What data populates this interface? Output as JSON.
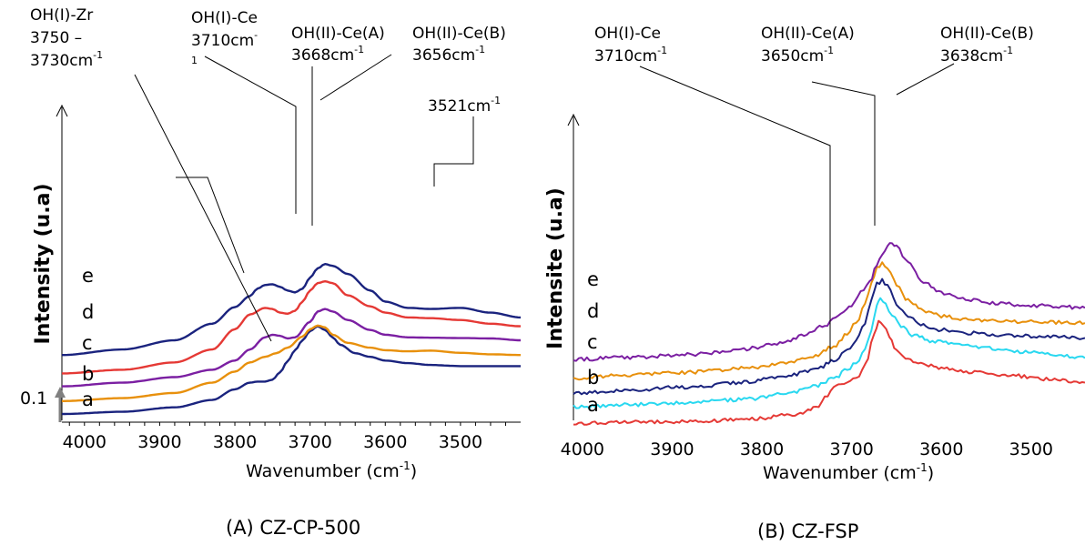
{
  "chart_data": [
    {
      "type": "line",
      "caption": "(A) CZ-CP-500",
      "xlabel": "Wavenumber",
      "xlabel_unit_base": "cm",
      "xlabel_unit_exp": "-1",
      "ylabel": "Intensity (u.a)",
      "scale_label": "0.1",
      "xlim": [
        4030,
        3420
      ],
      "x_reversed": true,
      "ticks": [
        "4000",
        "3900",
        "3800",
        "3700",
        "3600",
        "3500"
      ],
      "tick_values": [
        4000,
        3900,
        3800,
        3700,
        3600,
        3500
      ],
      "annotations": [
        {
          "lines": [
            "OH(I)-Zr",
            "3750 –",
            "3730cm"
          ],
          "sup": "-1"
        },
        {
          "lines": [
            "OH(I)-Ce",
            "3710cm"
          ],
          "sup": "-",
          "extra": "1"
        },
        {
          "lines": [
            "OH(II)-Ce(A)",
            "3668cm"
          ],
          "sup": "-1"
        },
        {
          "lines": [
            "OH(II)-Ce(B)",
            "3656cm"
          ],
          "sup": "-1"
        },
        {
          "lines": [
            "3521cm"
          ],
          "sup": "-1"
        }
      ],
      "series": [
        {
          "name": "a",
          "color": "#1a237e",
          "x": [
            4030,
            3950,
            3880,
            3830,
            3800,
            3780,
            3770,
            3760,
            3750,
            3740,
            3730,
            3720,
            3710,
            3700,
            3690,
            3680,
            3670,
            3660,
            3640,
            3620,
            3600,
            3570,
            3540,
            3500,
            3460,
            3420
          ],
          "y": [
            0.0,
            0.06,
            0.18,
            0.38,
            0.67,
            0.85,
            0.88,
            0.88,
            0.93,
            1.13,
            1.43,
            1.73,
            2.0,
            2.25,
            2.38,
            2.28,
            2.08,
            1.88,
            1.65,
            1.55,
            1.45,
            1.38,
            1.33,
            1.3,
            1.3,
            1.3
          ]
        },
        {
          "name": "b",
          "color": "#e8900c",
          "x": [
            4030,
            3950,
            3880,
            3830,
            3800,
            3780,
            3760,
            3745,
            3730,
            3710,
            3700,
            3690,
            3680,
            3670,
            3650,
            3620,
            3600,
            3570,
            3540,
            3500,
            3460,
            3420
          ],
          "y": [
            0.35,
            0.43,
            0.57,
            0.85,
            1.15,
            1.4,
            1.55,
            1.65,
            1.8,
            2.1,
            2.3,
            2.4,
            2.35,
            2.15,
            1.93,
            1.8,
            1.73,
            1.7,
            1.72,
            1.66,
            1.62,
            1.6
          ]
        },
        {
          "name": "c",
          "color": "#7b1fa2",
          "x": [
            4030,
            3950,
            3880,
            3830,
            3800,
            3780,
            3760,
            3750,
            3740,
            3730,
            3720,
            3700,
            3690,
            3680,
            3670,
            3650,
            3620,
            3600,
            3570,
            3540,
            3500,
            3460,
            3420
          ],
          "y": [
            0.75,
            0.85,
            1.0,
            1.2,
            1.45,
            1.75,
            2.08,
            2.15,
            2.12,
            2.05,
            2.08,
            2.5,
            2.78,
            2.85,
            2.78,
            2.55,
            2.28,
            2.15,
            2.08,
            2.07,
            2.06,
            2.05,
            2.0
          ]
        },
        {
          "name": "d",
          "color": "#e53935",
          "x": [
            4030,
            3950,
            3880,
            3830,
            3800,
            3780,
            3760,
            3750,
            3740,
            3730,
            3720,
            3710,
            3700,
            3690,
            3680,
            3670,
            3650,
            3620,
            3600,
            3570,
            3540,
            3500,
            3460,
            3420
          ],
          "y": [
            1.1,
            1.2,
            1.4,
            1.75,
            2.3,
            2.7,
            2.88,
            2.85,
            2.75,
            2.72,
            2.8,
            3.05,
            3.35,
            3.55,
            3.6,
            3.55,
            3.22,
            2.92,
            2.75,
            2.62,
            2.6,
            2.55,
            2.45,
            2.38
          ]
        },
        {
          "name": "e",
          "color": "#1a237e",
          "x": [
            4030,
            3950,
            3880,
            3830,
            3800,
            3780,
            3770,
            3760,
            3750,
            3740,
            3730,
            3720,
            3710,
            3700,
            3690,
            3680,
            3670,
            3650,
            3620,
            3600,
            3570,
            3540,
            3500,
            3460,
            3420
          ],
          "y": [
            1.6,
            1.75,
            2.0,
            2.45,
            2.9,
            3.2,
            3.4,
            3.5,
            3.52,
            3.45,
            3.35,
            3.3,
            3.4,
            3.7,
            3.95,
            4.07,
            4.02,
            3.8,
            3.35,
            3.05,
            2.88,
            2.85,
            2.88,
            2.75,
            2.62
          ]
        }
      ]
    },
    {
      "type": "line",
      "caption": "(B) CZ-FSP",
      "xlabel": "Wavenumber",
      "xlabel_unit_base": "cm",
      "xlabel_unit_exp": "-1",
      "ylabel": "Intensite (u.a)",
      "xlim": [
        4010,
        3440
      ],
      "x_reversed": true,
      "ticks": [
        "4000",
        "3900",
        "3800",
        "3700",
        "3600",
        "3500"
      ],
      "tick_values": [
        4000,
        3900,
        3800,
        3700,
        3600,
        3500
      ],
      "annotations": [
        {
          "lines": [
            "OH(I)-Ce",
            "3710cm"
          ],
          "sup": "-1"
        },
        {
          "lines": [
            "OH(II)-Ce(A)",
            "3650cm"
          ],
          "sup": "-1"
        },
        {
          "lines": [
            "OH(II)-Ce(B)",
            "3638cm"
          ],
          "sup": "-1"
        }
      ],
      "series": [
        {
          "name": "a",
          "color": "#e53935",
          "x": [
            4010,
            3950,
            3880,
            3820,
            3760,
            3740,
            3730,
            3720,
            3712,
            3705,
            3695,
            3685,
            3675,
            3670,
            3665,
            3658,
            3650,
            3640,
            3620,
            3600,
            3560,
            3520,
            3480,
            3440
          ],
          "y": [
            0.0,
            0.03,
            0.05,
            0.12,
            0.3,
            0.5,
            0.85,
            1.22,
            1.32,
            1.38,
            1.5,
            1.95,
            3.0,
            3.42,
            3.35,
            2.9,
            2.45,
            2.2,
            1.98,
            1.85,
            1.72,
            1.6,
            1.48,
            1.37
          ]
        },
        {
          "name": "b",
          "color": "#29d8f0",
          "x": [
            4010,
            3950,
            3880,
            3820,
            3770,
            3740,
            3720,
            3705,
            3695,
            3685,
            3678,
            3672,
            3668,
            3662,
            3655,
            3645,
            3630,
            3610,
            3580,
            3540,
            3500,
            3460,
            3440
          ],
          "y": [
            0.55,
            0.62,
            0.7,
            0.8,
            1.0,
            1.25,
            1.5,
            1.8,
            2.05,
            2.45,
            3.1,
            4.0,
            4.22,
            4.0,
            3.65,
            3.25,
            2.95,
            2.78,
            2.62,
            2.52,
            2.38,
            2.26,
            2.2
          ]
        },
        {
          "name": "c",
          "color": "#1a237e",
          "x": [
            4010,
            3950,
            3880,
            3820,
            3770,
            3740,
            3720,
            3705,
            3695,
            3685,
            3678,
            3672,
            3666,
            3660,
            3650,
            3640,
            3620,
            3600,
            3570,
            3540,
            3500,
            3460,
            3440
          ],
          "y": [
            1.0,
            1.12,
            1.22,
            1.38,
            1.6,
            1.82,
            2.1,
            2.45,
            2.8,
            3.35,
            4.2,
            4.7,
            4.82,
            4.62,
            4.05,
            3.65,
            3.3,
            3.15,
            3.05,
            2.98,
            2.95,
            2.9,
            2.88
          ]
        },
        {
          "name": "d",
          "color": "#e8900c",
          "x": [
            4010,
            3950,
            3880,
            3820,
            3770,
            3740,
            3720,
            3705,
            3695,
            3685,
            3678,
            3672,
            3666,
            3660,
            3650,
            3640,
            3620,
            3600,
            3570,
            3540,
            3500,
            3460,
            3440
          ],
          "y": [
            1.52,
            1.62,
            1.72,
            1.85,
            2.05,
            2.28,
            2.6,
            3.0,
            3.4,
            4.0,
            4.75,
            5.25,
            5.4,
            5.25,
            4.7,
            4.2,
            3.8,
            3.62,
            3.5,
            3.45,
            3.42,
            3.4,
            3.38
          ]
        },
        {
          "name": "e",
          "color": "#7b1fa2",
          "x": [
            4010,
            3950,
            3880,
            3820,
            3780,
            3750,
            3730,
            3715,
            3700,
            3690,
            3680,
            3672,
            3666,
            3660,
            3655,
            3650,
            3640,
            3620,
            3600,
            3570,
            3540,
            3500,
            3460,
            3440
          ],
          "y": [
            2.15,
            2.22,
            2.32,
            2.5,
            2.7,
            3.0,
            3.3,
            3.65,
            4.0,
            4.4,
            4.8,
            5.3,
            5.7,
            6.0,
            6.08,
            6.0,
            5.5,
            4.8,
            4.4,
            4.18,
            4.05,
            3.98,
            3.92,
            3.9
          ]
        }
      ]
    }
  ]
}
